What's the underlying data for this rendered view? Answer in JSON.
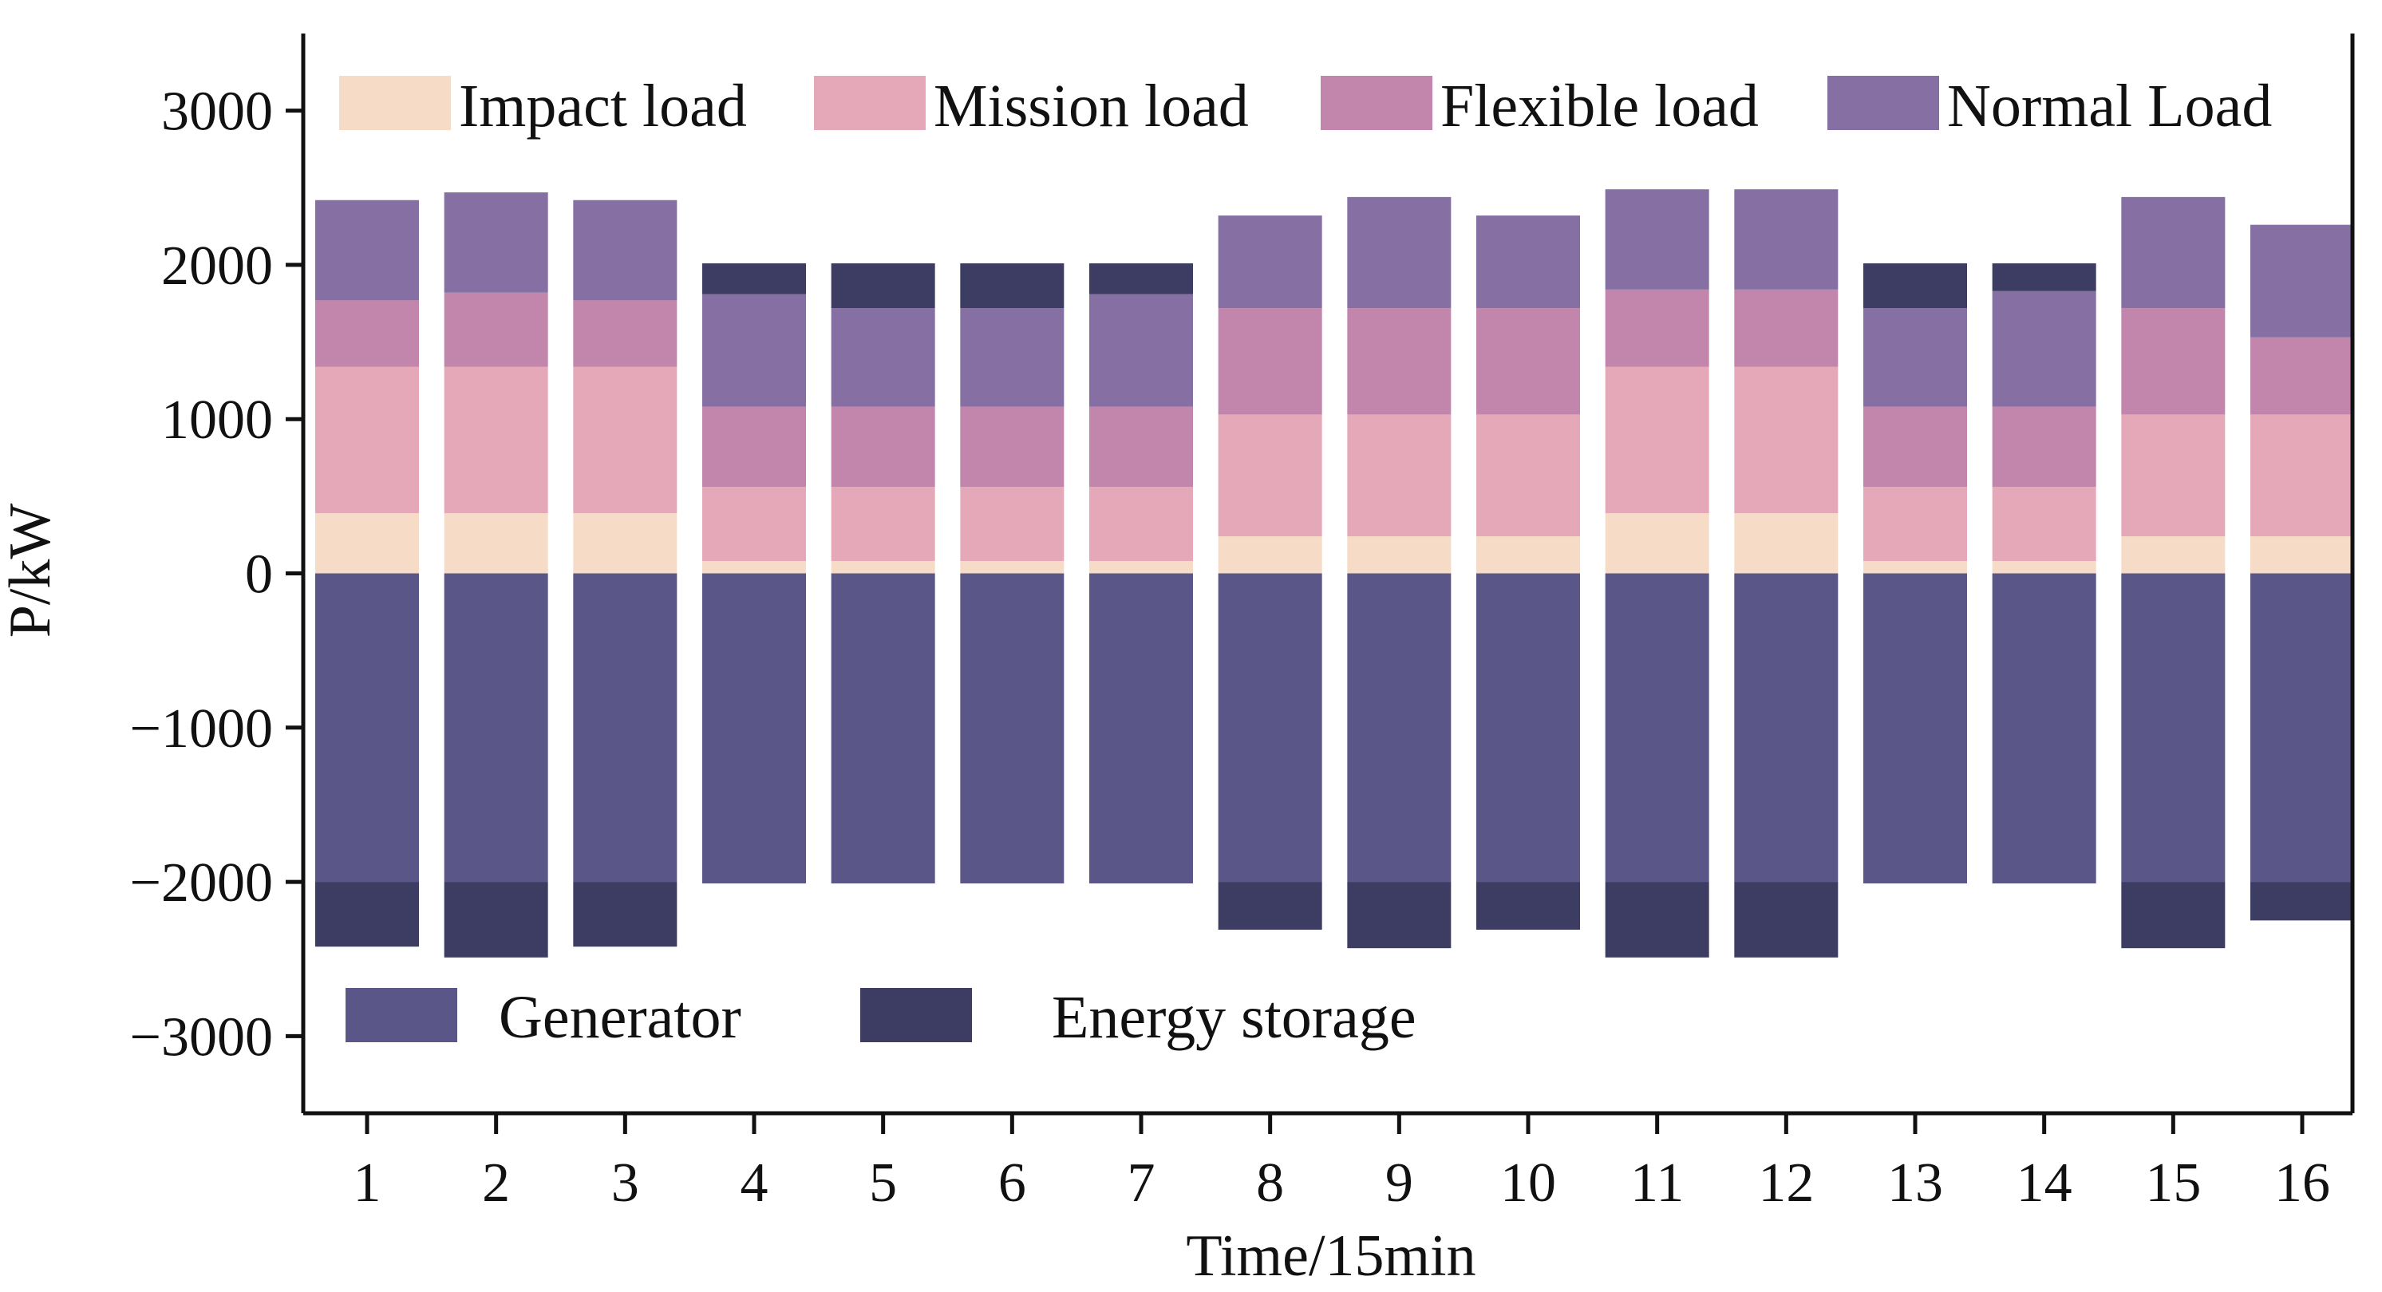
{
  "chart_data": {
    "type": "bar",
    "stacked": true,
    "ylabel": "P/kW",
    "xlabel": "Time/15min",
    "ylim": [
      -3500,
      3500
    ],
    "yticks": [
      3000,
      2000,
      1000,
      0,
      -1000,
      -2000,
      -3000
    ],
    "ytick_labels": [
      "3000",
      "2000",
      "1000",
      "0",
      "−1000",
      "−2000",
      "−3000"
    ],
    "categories": [
      "1",
      "2",
      "3",
      "4",
      "5",
      "6",
      "7",
      "8",
      "9",
      "10",
      "11",
      "12",
      "13",
      "14",
      "15",
      "16"
    ],
    "positive_series": [
      {
        "name": "Impact load",
        "color": "#f6dcc6",
        "values": [
          390,
          390,
          390,
          80,
          80,
          80,
          80,
          240,
          240,
          240,
          390,
          390,
          80,
          80,
          240,
          240
        ]
      },
      {
        "name": "Mission load",
        "color": "#e5a8b8",
        "values": [
          950,
          950,
          950,
          480,
          480,
          480,
          480,
          790,
          790,
          790,
          950,
          950,
          480,
          480,
          790,
          790
        ]
      },
      {
        "name": "Flexible load",
        "color": "#c286ad",
        "values": [
          430,
          480,
          430,
          520,
          520,
          520,
          520,
          690,
          690,
          690,
          500,
          500,
          520,
          520,
          690,
          500
        ]
      },
      {
        "name": "Normal Load",
        "color": "#856fa3",
        "values": [
          650,
          650,
          650,
          730,
          640,
          640,
          730,
          600,
          720,
          600,
          650,
          650,
          640,
          750,
          720,
          730
        ]
      },
      {
        "name": "Energy storage",
        "color": "#3d3c62",
        "values": [
          0,
          0,
          0,
          200,
          290,
          290,
          200,
          0,
          0,
          0,
          0,
          0,
          290,
          180,
          0,
          0
        ]
      }
    ],
    "negative_series": [
      {
        "name": "Generator",
        "color": "#5a5788",
        "values": [
          -2000,
          -2000,
          -2000,
          -2010,
          -2010,
          -2010,
          -2010,
          -2000,
          -2000,
          -2000,
          -2000,
          -2000,
          -2010,
          -2010,
          -2000,
          -2000
        ]
      },
      {
        "name": "Energy storage",
        "color": "#3d3c62",
        "values": [
          -420,
          -490,
          -420,
          0,
          0,
          0,
          0,
          -310,
          -430,
          -310,
          -490,
          -490,
          0,
          0,
          -430,
          -250
        ]
      }
    ],
    "legend_top": [
      "Impact load",
      "Mission load",
      "Flexible load",
      "Normal Load"
    ],
    "legend_bottom": [
      "Generator",
      "Energy storage"
    ],
    "legend_top_colors": [
      "#f6dcc6",
      "#e5a8b8",
      "#c286ad",
      "#856fa3"
    ],
    "legend_bottom_colors": [
      "#5a5788",
      "#3d3c62"
    ],
    "legend_top_position": "top",
    "legend_bottom_position": "bottom-left"
  }
}
